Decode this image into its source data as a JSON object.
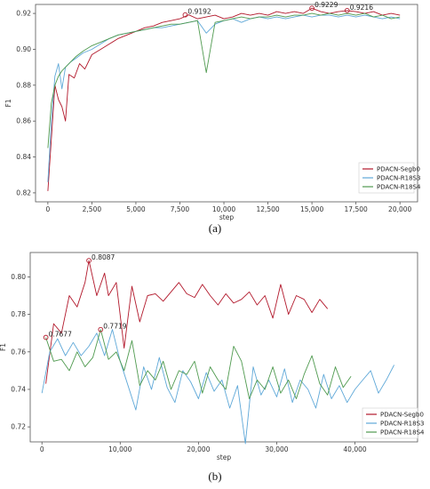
{
  "chart_data": [
    {
      "type": "line",
      "caption": "(a)",
      "xlabel": "step",
      "ylabel": "F1",
      "xlim": [
        -700,
        21000
      ],
      "ylim": [
        0.815,
        0.925
      ],
      "xticks": [
        0,
        2500,
        5000,
        7500,
        10000,
        12500,
        15000,
        17500,
        20000
      ],
      "xtick_labels": [
        "0",
        "2,500",
        "5,000",
        "7,500",
        "10,000",
        "12,500",
        "15,000",
        "17,500",
        "20,000"
      ],
      "yticks": [
        0.82,
        0.84,
        0.86,
        0.88,
        0.9,
        0.92
      ],
      "ytick_labels": [
        "0.82",
        "0.84",
        "0.86",
        "0.88",
        "0.90",
        "0.92"
      ],
      "legend_position": "lower-right",
      "series": [
        {
          "name": "PDACN-Segb0",
          "color": "#b2182b",
          "x": [
            0,
            200,
            400,
            600,
            800,
            1000,
            1200,
            1500,
            1800,
            2100,
            2500,
            3000,
            3500,
            4000,
            4500,
            5000,
            5500,
            6000,
            6500,
            7000,
            7500,
            8000,
            8500,
            9000,
            9500,
            10000,
            10500,
            11000,
            11500,
            12000,
            12500,
            13000,
            13500,
            14000,
            14500,
            15000,
            15500,
            16000,
            16500,
            17000,
            17500,
            18000,
            18500,
            19000,
            19500,
            20000
          ],
          "values": [
            0.821,
            0.85,
            0.88,
            0.872,
            0.868,
            0.86,
            0.886,
            0.884,
            0.892,
            0.889,
            0.897,
            0.9,
            0.903,
            0.906,
            0.908,
            0.91,
            0.912,
            0.913,
            0.915,
            0.916,
            0.917,
            0.9192,
            0.917,
            0.918,
            0.919,
            0.917,
            0.918,
            0.92,
            0.919,
            0.92,
            0.919,
            0.921,
            0.92,
            0.921,
            0.92,
            0.9229,
            0.921,
            0.92,
            0.921,
            0.9216,
            0.921,
            0.92,
            0.921,
            0.919,
            0.92,
            0.919
          ]
        },
        {
          "name": "PDACN-R18S3",
          "color": "#5fa8d8",
          "x": [
            0,
            200,
            400,
            600,
            800,
            1000,
            1300,
            1600,
            2000,
            2500,
            3000,
            3500,
            4000,
            4500,
            5000,
            5500,
            6000,
            6500,
            7000,
            7500,
            8000,
            8500,
            9000,
            9500,
            10000,
            10500,
            11000,
            11500,
            12000,
            12500,
            13000,
            13500,
            14000,
            14500,
            15000,
            15500,
            16000,
            16500,
            17000,
            17500,
            18000,
            18500,
            19000,
            19500,
            20000
          ],
          "values": [
            0.826,
            0.86,
            0.885,
            0.892,
            0.878,
            0.89,
            0.893,
            0.895,
            0.898,
            0.9,
            0.903,
            0.906,
            0.908,
            0.909,
            0.91,
            0.911,
            0.912,
            0.912,
            0.913,
            0.914,
            0.915,
            0.916,
            0.909,
            0.914,
            0.916,
            0.917,
            0.915,
            0.917,
            0.918,
            0.917,
            0.918,
            0.917,
            0.918,
            0.919,
            0.918,
            0.919,
            0.919,
            0.918,
            0.919,
            0.918,
            0.919,
            0.918,
            0.917,
            0.918,
            0.917
          ]
        },
        {
          "name": "PDACN-R18S4",
          "color": "#4f9a4f",
          "x": [
            0,
            200,
            400,
            600,
            800,
            1000,
            1300,
            1600,
            2000,
            2500,
            3000,
            3500,
            4000,
            4500,
            5000,
            5500,
            6000,
            6500,
            7000,
            7500,
            8000,
            8500,
            9000,
            9500,
            10000,
            10500,
            11000,
            11500,
            12000,
            12500,
            13000,
            13500,
            14000,
            14500,
            15000,
            15500,
            16000,
            16500,
            17000,
            17500,
            18000,
            18500,
            19000,
            19500,
            20000
          ],
          "values": [
            0.845,
            0.87,
            0.88,
            0.885,
            0.888,
            0.89,
            0.893,
            0.896,
            0.899,
            0.902,
            0.904,
            0.906,
            0.908,
            0.909,
            0.91,
            0.911,
            0.912,
            0.913,
            0.914,
            0.914,
            0.915,
            0.916,
            0.887,
            0.915,
            0.916,
            0.917,
            0.918,
            0.917,
            0.918,
            0.918,
            0.919,
            0.918,
            0.919,
            0.919,
            0.92,
            0.919,
            0.92,
            0.919,
            0.92,
            0.919,
            0.92,
            0.918,
            0.919,
            0.917,
            0.918
          ]
        }
      ],
      "annotations": [
        {
          "label": "0.9192",
          "x": 7800,
          "y": 0.9192,
          "color": "#b2182b"
        },
        {
          "label": "0.9229",
          "x": 15000,
          "y": 0.9229,
          "color": "#b2182b"
        },
        {
          "label": "0.9216",
          "x": 17000,
          "y": 0.9216,
          "color": "#b2182b"
        }
      ]
    },
    {
      "type": "line",
      "caption": "(b)",
      "xlabel": "step",
      "ylabel": "F1",
      "xlim": [
        -1500,
        48000
      ],
      "ylim": [
        0.712,
        0.813
      ],
      "xticks": [
        0,
        10000,
        20000,
        30000,
        40000
      ],
      "xtick_labels": [
        "0",
        "10,000",
        "20,000",
        "30,000",
        "40,000"
      ],
      "yticks": [
        0.72,
        0.74,
        0.76,
        0.78,
        0.8
      ],
      "ytick_labels": [
        "0.72",
        "0.74",
        "0.76",
        "0.78",
        "0.80"
      ],
      "legend_position": "lower-right",
      "series": [
        {
          "name": "PDACN-Segb0",
          "color": "#b2182b",
          "x": [
            500,
            1500,
            2500,
            3500,
            4500,
            5500,
            6000,
            7000,
            8000,
            8500,
            9500,
            10500,
            11500,
            12500,
            13500,
            14500,
            15500,
            16500,
            17500,
            18500,
            19500,
            20500,
            21500,
            22500,
            23500,
            24500,
            25500,
            26500,
            27500,
            28500,
            29500,
            30500,
            31500,
            32500,
            33500,
            34500,
            35500,
            36500
          ],
          "values": [
            0.743,
            0.775,
            0.77,
            0.79,
            0.784,
            0.797,
            0.8087,
            0.79,
            0.802,
            0.79,
            0.797,
            0.762,
            0.795,
            0.776,
            0.79,
            0.791,
            0.787,
            0.792,
            0.797,
            0.791,
            0.789,
            0.796,
            0.79,
            0.785,
            0.791,
            0.786,
            0.788,
            0.792,
            0.785,
            0.79,
            0.778,
            0.796,
            0.78,
            0.79,
            0.788,
            0.781,
            0.788,
            0.783
          ]
        },
        {
          "name": "PDACN-R18S3",
          "color": "#5fa8d8",
          "x": [
            0,
            1000,
            2000,
            3000,
            4000,
            5000,
            6000,
            7000,
            8000,
            9000,
            10000,
            11000,
            12000,
            13000,
            14000,
            15000,
            16000,
            17000,
            18000,
            19000,
            20000,
            21000,
            22000,
            23000,
            24000,
            25000,
            26000,
            27000,
            28000,
            29000,
            30000,
            31000,
            32000,
            33000,
            34000,
            35000,
            36000,
            37000,
            38000,
            39000,
            40000,
            41000,
            42000,
            43000,
            44000,
            45000
          ],
          "values": [
            0.738,
            0.76,
            0.767,
            0.758,
            0.765,
            0.758,
            0.763,
            0.77,
            0.758,
            0.772,
            0.755,
            0.742,
            0.729,
            0.752,
            0.74,
            0.757,
            0.741,
            0.733,
            0.75,
            0.744,
            0.735,
            0.749,
            0.739,
            0.745,
            0.73,
            0.742,
            0.711,
            0.752,
            0.737,
            0.745,
            0.736,
            0.751,
            0.733,
            0.745,
            0.74,
            0.73,
            0.748,
            0.735,
            0.742,
            0.733,
            0.74,
            0.745,
            0.75,
            0.738,
            0.745,
            0.753
          ]
        },
        {
          "name": "PDACN-R18S4",
          "color": "#4f9a4f",
          "x": [
            500,
            1500,
            2500,
            3500,
            4500,
            5500,
            6500,
            7500,
            8500,
            9500,
            10500,
            11500,
            12500,
            13500,
            14500,
            15500,
            16500,
            17500,
            18500,
            19500,
            20500,
            21500,
            22500,
            23500,
            24500,
            25500,
            26500,
            27500,
            28500,
            29500,
            30500,
            31500,
            32500,
            33500,
            34500,
            35500,
            36500,
            37500,
            38500,
            39500
          ],
          "values": [
            0.7677,
            0.755,
            0.756,
            0.75,
            0.76,
            0.752,
            0.757,
            0.7719,
            0.756,
            0.76,
            0.75,
            0.766,
            0.742,
            0.75,
            0.745,
            0.755,
            0.74,
            0.75,
            0.748,
            0.755,
            0.738,
            0.752,
            0.745,
            0.74,
            0.763,
            0.755,
            0.735,
            0.745,
            0.74,
            0.752,
            0.738,
            0.745,
            0.735,
            0.748,
            0.758,
            0.743,
            0.737,
            0.752,
            0.741,
            0.747
          ]
        }
      ],
      "annotations": [
        {
          "label": "0.7677",
          "x": 500,
          "y": 0.7677,
          "color": "#b2182b"
        },
        {
          "label": "0.8087",
          "x": 6000,
          "y": 0.8087,
          "color": "#b2182b"
        },
        {
          "label": "0.7719",
          "x": 7500,
          "y": 0.7719,
          "color": "#b2182b"
        }
      ]
    }
  ]
}
